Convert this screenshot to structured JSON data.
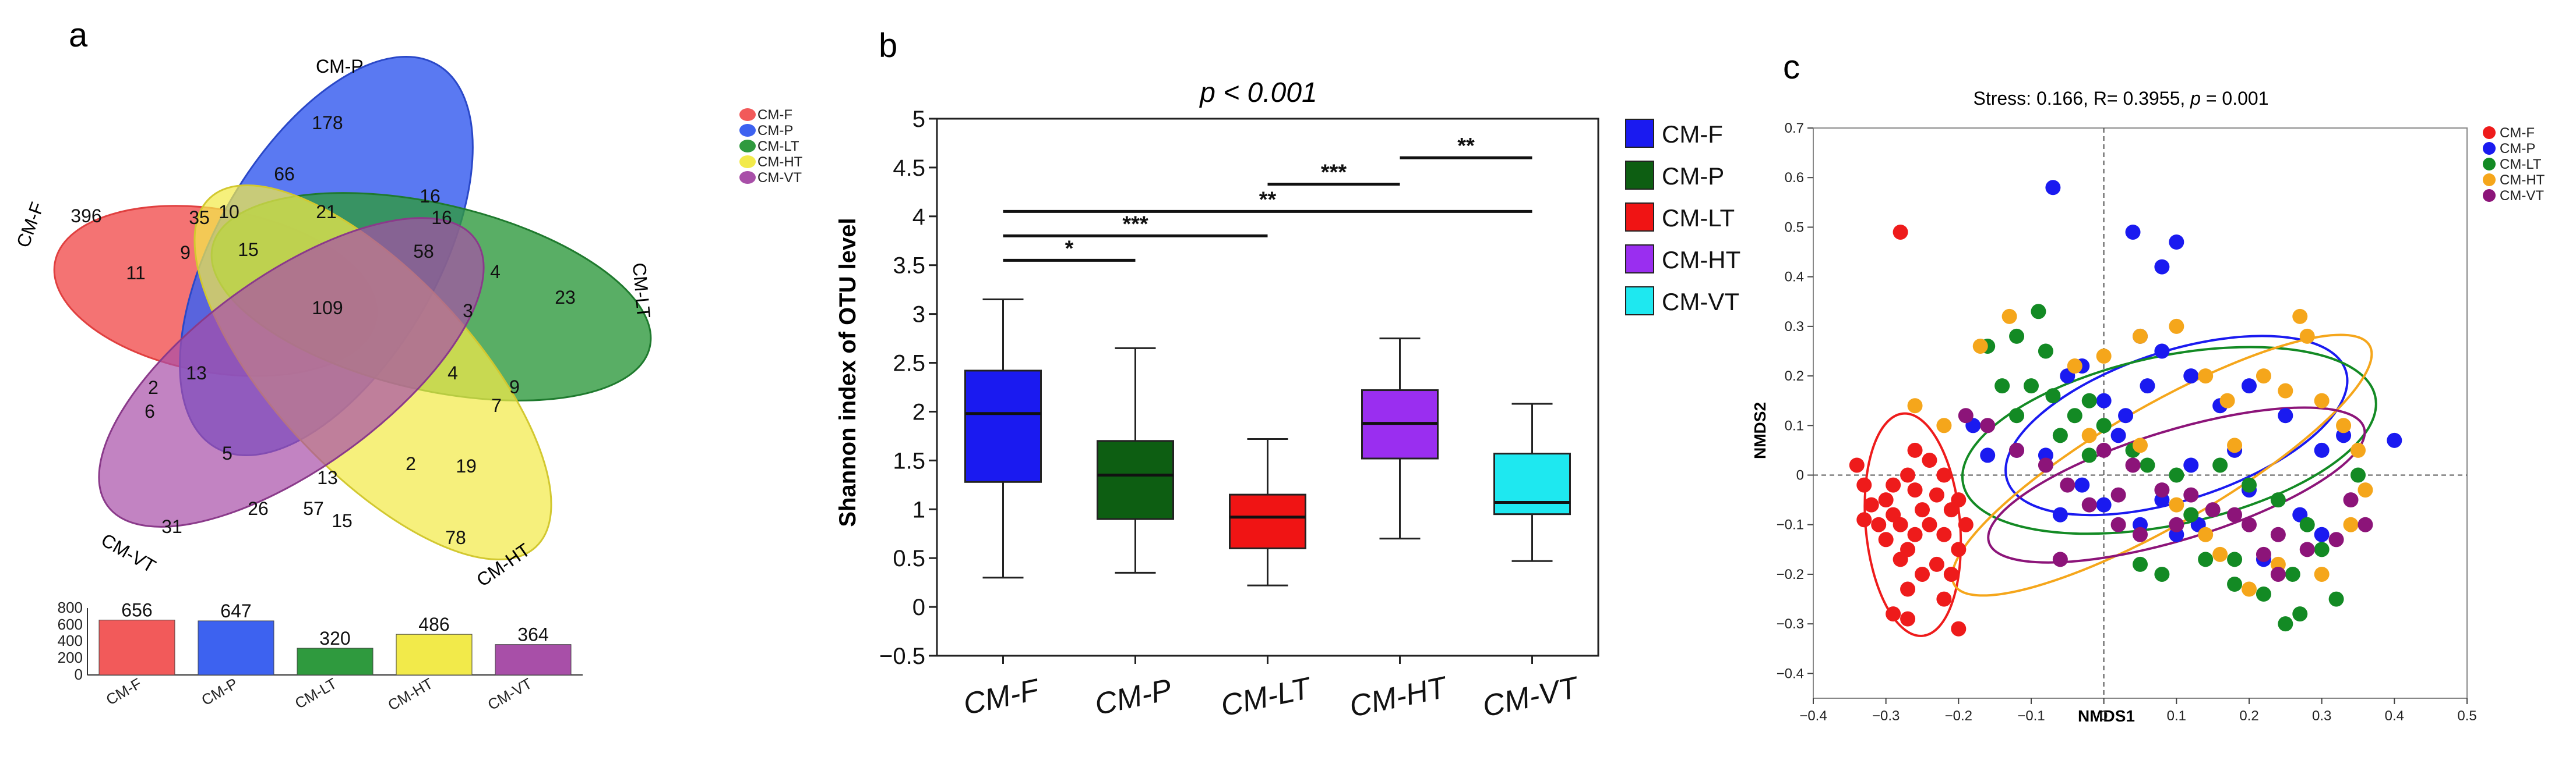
{
  "panels": {
    "a": "a",
    "b": "b",
    "c": "c"
  },
  "colors": {
    "CM-F": "#f25a5a",
    "CM-P": "#3d62f0",
    "CM-LT": "#2f9a3e",
    "CM-HT": "#f2ea4a",
    "CM-VT": "#a84fa8"
  },
  "chart_data": [
    {
      "panel": "a",
      "type": "venn",
      "sets": [
        "CM-F",
        "CM-P",
        "CM-LT",
        "CM-HT",
        "CM-VT"
      ],
      "legend": [
        "CM-F",
        "CM-P",
        "CM-LT",
        "CM-HT",
        "CM-VT"
      ],
      "region_counts": [
        "178",
        "66",
        "10",
        "35",
        "21",
        "16",
        "16",
        "396",
        "11",
        "9",
        "15",
        "58",
        "4",
        "23",
        "3",
        "109",
        "4",
        "7",
        "9",
        "13",
        "2",
        "6",
        "5",
        "26",
        "57",
        "13",
        "15",
        "2",
        "19",
        "31",
        "78"
      ]
    },
    {
      "panel": "a-bar",
      "type": "bar",
      "categories": [
        "CM-F",
        "CM-P",
        "CM-LT",
        "CM-HT",
        "CM-VT"
      ],
      "values": [
        656,
        647,
        320,
        486,
        364
      ],
      "ylim": [
        0,
        800
      ],
      "yticks": [
        "0",
        "200",
        "400",
        "600",
        "800"
      ]
    },
    {
      "panel": "b",
      "type": "box",
      "title": "p < 0.001",
      "ylabel": "Shannon index of OTU level",
      "categories": [
        "CM-F",
        "CM-P",
        "CM-LT",
        "CM-HT",
        "CM-VT"
      ],
      "ylim": [
        -0.5,
        5
      ],
      "yticks": [
        "−0.5",
        "0",
        "0.5",
        "1",
        "1.5",
        "2",
        "2.5",
        "3",
        "3.5",
        "4",
        "4.5",
        "5"
      ],
      "boxes": [
        {
          "name": "CM-F",
          "min": 0.3,
          "q1": 1.28,
          "median": 1.98,
          "q3": 2.42,
          "max": 3.15
        },
        {
          "name": "CM-P",
          "min": 0.35,
          "q1": 0.9,
          "median": 1.35,
          "q3": 1.7,
          "max": 2.65
        },
        {
          "name": "CM-LT",
          "min": 0.22,
          "q1": 0.6,
          "median": 0.92,
          "q3": 1.15,
          "max": 1.72
        },
        {
          "name": "CM-HT",
          "min": 0.7,
          "q1": 1.52,
          "median": 1.88,
          "q3": 2.22,
          "max": 2.75
        },
        {
          "name": "CM-VT",
          "min": 0.47,
          "q1": 0.95,
          "median": 1.07,
          "q3": 1.57,
          "max": 2.08
        }
      ],
      "significance": [
        {
          "from": "CM-F",
          "to": "CM-P",
          "y": 3.55,
          "label": "*"
        },
        {
          "from": "CM-F",
          "to": "CM-LT",
          "y": 3.8,
          "label": "***"
        },
        {
          "from": "CM-F",
          "to": "CM-VT",
          "y": 4.05,
          "label": "**"
        },
        {
          "from": "CM-LT",
          "to": "CM-HT",
          "y": 4.33,
          "label": "***"
        },
        {
          "from": "CM-HT",
          "to": "CM-VT",
          "y": 4.6,
          "label": "**"
        }
      ],
      "legend": [
        "CM-F",
        "CM-P",
        "CM-LT",
        "CM-HT",
        "CM-VT"
      ],
      "legend_colors": [
        "#1a1af0",
        "#0d5e12",
        "#f01414",
        "#9a2ef0",
        "#1ee8f0"
      ]
    },
    {
      "panel": "c",
      "type": "scatter",
      "title_prefix": "Stress: 0.166, R= 0.3955, ",
      "title_p": "p",
      "title_suffix": " = 0.001",
      "xlabel": "NMDS1",
      "ylabel": "NMDS2",
      "xlim": [
        -0.4,
        0.5
      ],
      "ylim": [
        -0.45,
        0.7
      ],
      "xticks": [
        "−0.4",
        "−0.3",
        "−0.2",
        "−0.1",
        "0",
        "0.1",
        "0.2",
        "0.3",
        "0.4",
        "0.5"
      ],
      "xticks_v": [
        -0.4,
        -0.3,
        -0.2,
        -0.1,
        0,
        0.1,
        0.2,
        0.3,
        0.4,
        0.5
      ],
      "yticks": [
        "−0.4",
        "−0.3",
        "−0.2",
        "−0.1",
        "0",
        "0.1",
        "0.2",
        "0.3",
        "0.4",
        "0.5",
        "0.6",
        "0.7"
      ],
      "yticks_v": [
        -0.4,
        -0.3,
        -0.2,
        -0.1,
        0,
        0.1,
        0.2,
        0.3,
        0.4,
        0.5,
        0.6,
        0.7
      ],
      "legend": [
        "CM-F",
        "CM-P",
        "CM-LT",
        "CM-HT",
        "CM-VT"
      ],
      "series": [
        {
          "name": "CM-F",
          "color": "#ee1b1b",
          "points": [
            [
              -0.28,
              0.49
            ],
            [
              -0.34,
              0.02
            ],
            [
              -0.33,
              -0.02
            ],
            [
              -0.32,
              -0.06
            ],
            [
              -0.33,
              -0.09
            ],
            [
              -0.31,
              -0.1
            ],
            [
              -0.3,
              -0.05
            ],
            [
              -0.29,
              -0.08
            ],
            [
              -0.3,
              -0.13
            ],
            [
              -0.28,
              -0.1
            ],
            [
              -0.27,
              0.0
            ],
            [
              -0.26,
              -0.03
            ],
            [
              -0.25,
              -0.07
            ],
            [
              -0.27,
              -0.15
            ],
            [
              -0.28,
              -0.17
            ],
            [
              -0.26,
              -0.12
            ],
            [
              -0.24,
              -0.1
            ],
            [
              -0.23,
              -0.04
            ],
            [
              -0.22,
              0.0
            ],
            [
              -0.21,
              -0.07
            ],
            [
              -0.22,
              -0.12
            ],
            [
              -0.2,
              -0.15
            ],
            [
              -0.23,
              -0.18
            ],
            [
              -0.25,
              -0.2
            ],
            [
              -0.27,
              -0.23
            ],
            [
              -0.22,
              -0.25
            ],
            [
              -0.29,
              -0.28
            ],
            [
              -0.27,
              -0.29
            ],
            [
              -0.2,
              -0.31
            ],
            [
              -0.2,
              -0.05
            ],
            [
              -0.24,
              0.03
            ],
            [
              -0.26,
              0.05
            ],
            [
              -0.19,
              -0.1
            ],
            [
              -0.21,
              -0.2
            ],
            [
              -0.29,
              -0.02
            ]
          ]
        },
        {
          "name": "CM-P",
          "color": "#1a1af0",
          "points": [
            [
              -0.07,
              0.58
            ],
            [
              0.04,
              0.49
            ],
            [
              0.1,
              0.47
            ],
            [
              0.08,
              0.42
            ],
            [
              0.05,
              0.28
            ],
            [
              -0.03,
              0.22
            ],
            [
              -0.05,
              0.2
            ],
            [
              0.0,
              0.15
            ],
            [
              0.03,
              0.12
            ],
            [
              0.06,
              0.18
            ],
            [
              0.12,
              0.2
            ],
            [
              0.16,
              0.14
            ],
            [
              0.2,
              0.18
            ],
            [
              0.25,
              0.12
            ],
            [
              0.3,
              0.05
            ],
            [
              0.33,
              0.08
            ],
            [
              0.4,
              0.07
            ],
            [
              0.18,
              0.05
            ],
            [
              0.12,
              0.02
            ],
            [
              0.08,
              -0.05
            ],
            [
              0.05,
              -0.1
            ],
            [
              0.0,
              -0.06
            ],
            [
              -0.03,
              -0.02
            ],
            [
              -0.08,
              0.04
            ],
            [
              -0.12,
              0.05
            ],
            [
              -0.18,
              0.1
            ],
            [
              -0.16,
              0.04
            ],
            [
              0.02,
              0.08
            ],
            [
              0.1,
              -0.12
            ],
            [
              0.2,
              -0.03
            ],
            [
              0.27,
              -0.08
            ],
            [
              0.3,
              -0.12
            ],
            [
              0.22,
              -0.17
            ],
            [
              0.13,
              -0.1
            ],
            [
              -0.06,
              -0.08
            ],
            [
              0.08,
              0.25
            ]
          ]
        },
        {
          "name": "CM-LT",
          "color": "#138a24",
          "points": [
            [
              -0.09,
              0.33
            ],
            [
              -0.12,
              0.28
            ],
            [
              -0.16,
              0.26
            ],
            [
              -0.1,
              0.18
            ],
            [
              -0.07,
              0.16
            ],
            [
              -0.04,
              0.12
            ],
            [
              -0.02,
              0.15
            ],
            [
              0.0,
              0.1
            ],
            [
              0.04,
              0.05
            ],
            [
              -0.06,
              0.08
            ],
            [
              -0.12,
              0.12
            ],
            [
              -0.14,
              0.18
            ],
            [
              -0.02,
              0.04
            ],
            [
              0.06,
              0.02
            ],
            [
              0.1,
              0.0
            ],
            [
              0.16,
              0.02
            ],
            [
              0.2,
              -0.02
            ],
            [
              0.24,
              -0.05
            ],
            [
              0.28,
              -0.1
            ],
            [
              0.3,
              -0.15
            ],
            [
              0.26,
              -0.2
            ],
            [
              0.22,
              -0.24
            ],
            [
              0.18,
              -0.22
            ],
            [
              0.14,
              -0.17
            ],
            [
              0.12,
              -0.08
            ],
            [
              0.05,
              -0.18
            ],
            [
              0.08,
              -0.2
            ],
            [
              0.32,
              -0.25
            ],
            [
              0.27,
              -0.28
            ],
            [
              0.25,
              -0.3
            ],
            [
              -0.08,
              0.25
            ],
            [
              0.18,
              -0.17
            ],
            [
              0.35,
              0.0
            ]
          ]
        },
        {
          "name": "CM-HT",
          "color": "#f5a61b",
          "points": [
            [
              -0.26,
              0.14
            ],
            [
              -0.22,
              0.1
            ],
            [
              -0.17,
              0.26
            ],
            [
              -0.13,
              0.32
            ],
            [
              -0.04,
              0.22
            ],
            [
              0.0,
              0.24
            ],
            [
              0.05,
              0.28
            ],
            [
              0.1,
              0.3
            ],
            [
              0.14,
              0.2
            ],
            [
              0.17,
              0.15
            ],
            [
              0.22,
              0.2
            ],
            [
              0.25,
              0.17
            ],
            [
              0.3,
              0.15
            ],
            [
              0.33,
              0.1
            ],
            [
              0.35,
              0.05
            ],
            [
              0.36,
              -0.03
            ],
            [
              0.34,
              -0.1
            ],
            [
              0.3,
              -0.2
            ],
            [
              0.24,
              -0.18
            ],
            [
              0.2,
              -0.23
            ],
            [
              0.16,
              -0.16
            ],
            [
              0.14,
              -0.12
            ],
            [
              0.1,
              -0.06
            ],
            [
              0.05,
              0.06
            ],
            [
              -0.02,
              0.08
            ],
            [
              0.27,
              0.32
            ],
            [
              0.28,
              0.28
            ],
            [
              0.18,
              0.06
            ]
          ]
        },
        {
          "name": "CM-VT",
          "color": "#8c1479",
          "points": [
            [
              -0.19,
              0.12
            ],
            [
              -0.16,
              0.1
            ],
            [
              -0.12,
              0.05
            ],
            [
              -0.08,
              0.02
            ],
            [
              -0.05,
              -0.02
            ],
            [
              0.0,
              0.05
            ],
            [
              0.04,
              0.02
            ],
            [
              0.08,
              -0.03
            ],
            [
              0.12,
              -0.04
            ],
            [
              0.15,
              -0.07
            ],
            [
              0.2,
              -0.1
            ],
            [
              0.24,
              -0.12
            ],
            [
              0.28,
              -0.15
            ],
            [
              0.32,
              -0.13
            ],
            [
              0.36,
              -0.1
            ],
            [
              0.34,
              -0.05
            ],
            [
              0.24,
              -0.2
            ],
            [
              0.18,
              -0.08
            ],
            [
              0.1,
              -0.1
            ],
            [
              0.05,
              -0.12
            ],
            [
              0.02,
              -0.1
            ],
            [
              -0.02,
              -0.06
            ],
            [
              -0.06,
              -0.17
            ],
            [
              0.02,
              -0.04
            ],
            [
              0.22,
              -0.16
            ]
          ]
        }
      ],
      "ellipses": [
        {
          "name": "CM-F",
          "cx": -0.263,
          "cy": -0.1,
          "rx": 0.065,
          "ry": 0.225,
          "angle": -5
        },
        {
          "name": "CM-P",
          "cx": 0.1,
          "cy": 0.1,
          "rx": 0.245,
          "ry": 0.15,
          "angle": -18
        },
        {
          "name": "CM-LT",
          "cx": 0.09,
          "cy": 0.07,
          "rx": 0.29,
          "ry": 0.17,
          "angle": -12
        },
        {
          "name": "CM-HT",
          "cx": 0.08,
          "cy": 0.02,
          "rx": 0.33,
          "ry": 0.12,
          "angle": -30
        },
        {
          "name": "CM-VT",
          "cx": 0.1,
          "cy": -0.02,
          "rx": 0.27,
          "ry": 0.11,
          "angle": -17
        }
      ]
    }
  ]
}
